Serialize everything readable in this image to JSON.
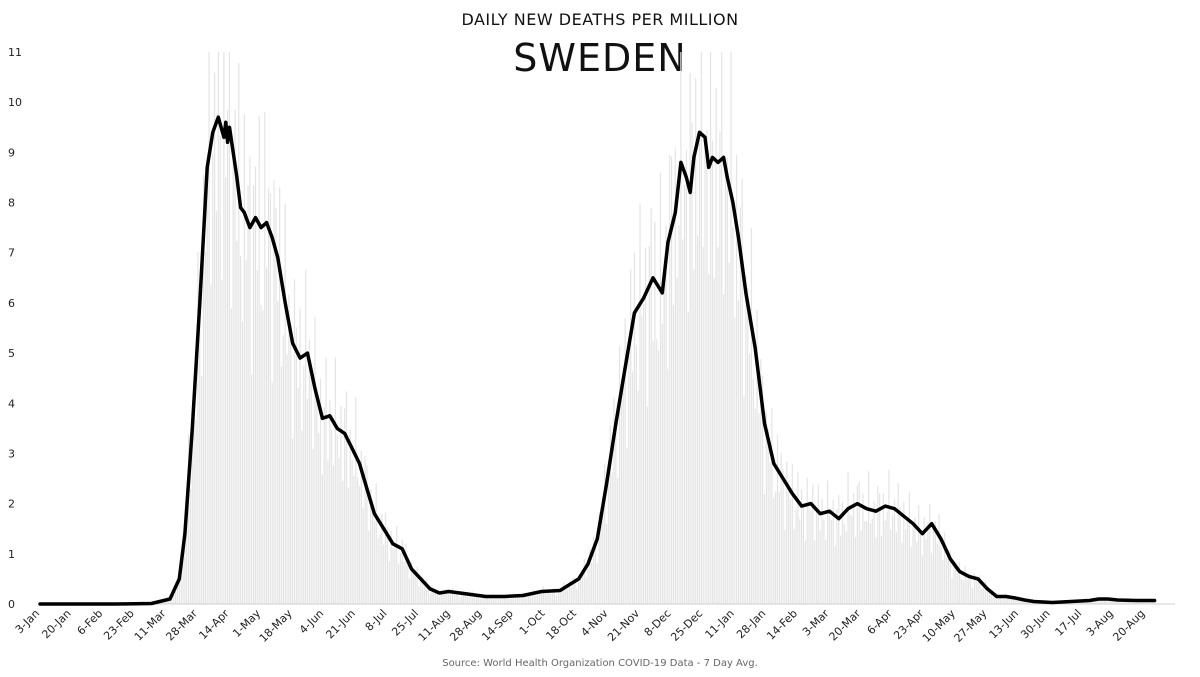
{
  "chart_data": {
    "type": "line",
    "title": "SWEDEN",
    "subtitle": "DAILY NEW DEATHS PER MILLION",
    "source": "Source: World Health Organization COVID-19 Data - 7 Day Avg.",
    "xlabel": "",
    "ylabel": "",
    "ylim": [
      0,
      11
    ],
    "yticks": [
      0,
      1,
      2,
      3,
      4,
      5,
      6,
      7,
      8,
      9,
      10,
      11
    ],
    "xticks": [
      "3-Jan",
      "20-Jan",
      "6-Feb",
      "23-Feb",
      "11-Mar",
      "28-Mar",
      "14-Apr",
      "1-May",
      "18-May",
      "4-Jun",
      "21-Jun",
      "8-Jul",
      "25-Jul",
      "11-Aug",
      "28-Aug",
      "14-Sep",
      "1-Oct",
      "18-Oct",
      "4-Nov",
      "21-Nov",
      "8-Dec",
      "25-Dec",
      "11-Jan",
      "28-Jan",
      "14-Feb",
      "3-Mar",
      "20-Mar",
      "6-Apr",
      "23-Apr",
      "10-May",
      "27-May",
      "13-Jun",
      "30-Jun",
      "17-Jul",
      "3-Aug",
      "20-Aug"
    ],
    "grid": false,
    "series": [
      {
        "name": "",
        "x": [
          0,
          20,
          40,
          60,
          70,
          75,
          78,
          82,
          86,
          90,
          93,
          96,
          99,
          100,
          101,
          102,
          104,
          106,
          108,
          110,
          113,
          116,
          119,
          122,
          125,
          128,
          132,
          136,
          140,
          144,
          148,
          152,
          156,
          160,
          164,
          168,
          172,
          176,
          180,
          185,
          190,
          195,
          200,
          205,
          210,
          215,
          220,
          230,
          240,
          250,
          260,
          270,
          280,
          290,
          295,
          300,
          305,
          310,
          315,
          320,
          325,
          330,
          335,
          338,
          342,
          345,
          348,
          350,
          352,
          355,
          358,
          360,
          362,
          365,
          368,
          370,
          373,
          376,
          380,
          385,
          390,
          395,
          400,
          405,
          410,
          415,
          420,
          425,
          430,
          435,
          440,
          445,
          450,
          455,
          460,
          465,
          470,
          475,
          480,
          485,
          490,
          495,
          500,
          505,
          510,
          515,
          520,
          525,
          530,
          535,
          540,
          545,
          550,
          555,
          560,
          565,
          570,
          575,
          580,
          590,
          600
        ],
        "values": [
          0,
          0,
          0,
          0.01,
          0.1,
          0.5,
          1.4,
          3.5,
          6.0,
          8.7,
          9.4,
          9.7,
          9.3,
          9.6,
          9.2,
          9.5,
          9.0,
          8.5,
          7.9,
          7.8,
          7.5,
          7.7,
          7.5,
          7.6,
          7.3,
          6.9,
          6.0,
          5.2,
          4.9,
          5.0,
          4.3,
          3.7,
          3.75,
          3.5,
          3.4,
          3.1,
          2.8,
          2.3,
          1.8,
          1.5,
          1.2,
          1.1,
          0.7,
          0.5,
          0.3,
          0.22,
          0.25,
          0.2,
          0.15,
          0.15,
          0.17,
          0.25,
          0.27,
          0.5,
          0.8,
          1.3,
          2.4,
          3.6,
          4.7,
          5.8,
          6.1,
          6.5,
          6.2,
          7.2,
          7.8,
          8.8,
          8.5,
          8.2,
          8.9,
          9.4,
          9.3,
          8.7,
          8.9,
          8.8,
          8.9,
          8.5,
          8.0,
          7.3,
          6.2,
          5.1,
          3.6,
          2.8,
          2.5,
          2.2,
          1.95,
          2.0,
          1.8,
          1.85,
          1.7,
          1.9,
          2.0,
          1.9,
          1.85,
          1.95,
          1.9,
          1.75,
          1.6,
          1.4,
          1.6,
          1.3,
          0.9,
          0.65,
          0.55,
          0.5,
          0.3,
          0.15,
          0.15,
          0.12,
          0.08,
          0.05,
          0.04,
          0.03,
          0.04,
          0.05,
          0.06,
          0.07,
          0.1,
          0.1,
          0.08,
          0.07,
          0.07
        ]
      }
    ]
  }
}
